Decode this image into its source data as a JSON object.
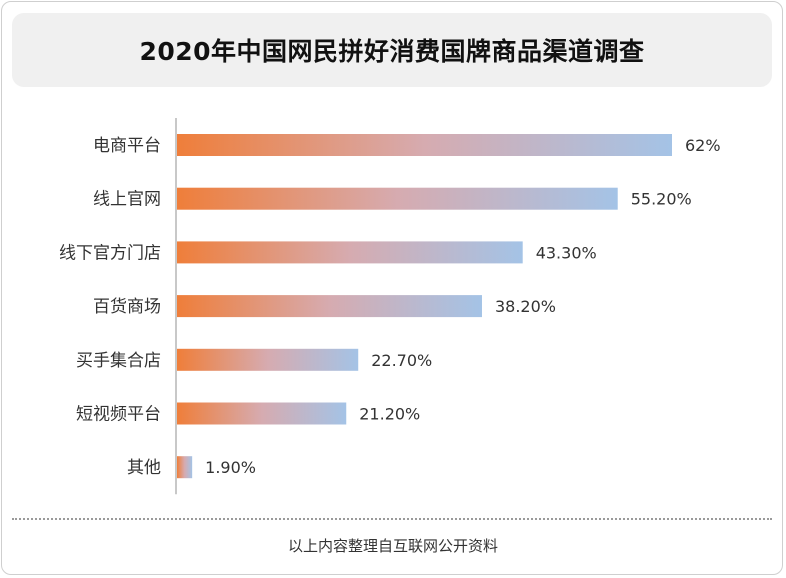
{
  "title": "2020年中国网民拼好消费国牌商品渠道调查",
  "source_note": "以上内容整理自互联网公开资料",
  "colors": {
    "bar_start": "#ef7e3a",
    "bar_mid": "#d6abb0",
    "bar_end": "#a4c3e6",
    "axis": "#c8c8c8",
    "text": "#333333"
  },
  "chart_data": {
    "type": "bar",
    "orientation": "horizontal",
    "categories": [
      "电商平台",
      "线上官网",
      "线下官方门店",
      "百货商场",
      "买手集合店",
      "短视频平台",
      "其他"
    ],
    "values": [
      62,
      55.2,
      43.3,
      38.2,
      22.7,
      21.2,
      1.9
    ],
    "value_labels": [
      "62%",
      "55.20%",
      "43.30%",
      "38.20%",
      "22.70%",
      "21.20%",
      "1.90%"
    ],
    "unit": "%",
    "title": "2020年中国网民拼好消费国牌商品渠道调查",
    "xlabel": "",
    "ylabel": "",
    "xlim": [
      0,
      62
    ],
    "grid": false,
    "legend": "none"
  }
}
